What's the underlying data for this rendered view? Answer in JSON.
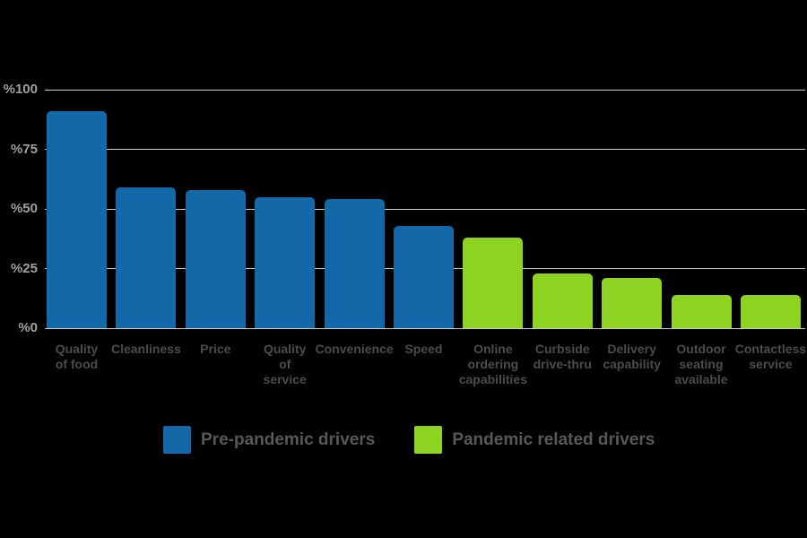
{
  "background_color": "#000000",
  "chart_data": {
    "type": "bar",
    "title": "",
    "unit": "percent",
    "ylim": [
      0,
      100
    ],
    "grid": "horizontal",
    "legend_position": "bottom",
    "yticks": [
      {
        "value": 100,
        "label": "%100"
      },
      {
        "value": 75,
        "label": "%75"
      },
      {
        "value": 50,
        "label": "%50"
      },
      {
        "value": 25,
        "label": "%25"
      },
      {
        "value": 0,
        "label": "%0"
      }
    ],
    "categories": [
      "Quality of food",
      "Cleanliness",
      "Price",
      "Quality of service",
      "Convenience",
      "Speed",
      "Online ordering capabilities",
      "Curbside drive-thru",
      "Delivery capability",
      "Outdoor seating available",
      "Contactless service"
    ],
    "bars": [
      {
        "label": "Quality of food",
        "lines": [
          "Quality",
          "of food"
        ],
        "value": 91,
        "group": "pre_pandemic"
      },
      {
        "label": "Cleanliness",
        "lines": [
          "Cleanliness"
        ],
        "value": 59,
        "group": "pre_pandemic"
      },
      {
        "label": "Price",
        "lines": [
          "Price"
        ],
        "value": 58,
        "group": "pre_pandemic"
      },
      {
        "label": "Quality of service",
        "lines": [
          "Quality",
          "of",
          "service"
        ],
        "value": 55,
        "group": "pre_pandemic"
      },
      {
        "label": "Convenience",
        "lines": [
          "Convenience"
        ],
        "value": 54,
        "group": "pre_pandemic"
      },
      {
        "label": "Speed",
        "lines": [
          "Speed"
        ],
        "value": 43,
        "group": "pre_pandemic"
      },
      {
        "label": "Online ordering capabilities",
        "lines": [
          "Online",
          "ordering",
          "capabilities"
        ],
        "value": 38,
        "group": "pandemic"
      },
      {
        "label": "Curbside drive-thru",
        "lines": [
          "Curbside",
          "drive-thru"
        ],
        "value": 23,
        "group": "pandemic"
      },
      {
        "label": "Delivery capability",
        "lines": [
          "Delivery",
          "capability"
        ],
        "value": 21,
        "group": "pandemic"
      },
      {
        "label": "Outdoor seating available",
        "lines": [
          "Outdoor",
          "seating",
          "available"
        ],
        "value": 14,
        "group": "pandemic"
      },
      {
        "label": "Contactless service",
        "lines": [
          "Contactless",
          "service"
        ],
        "value": 14,
        "group": "pandemic"
      }
    ],
    "groups": {
      "pre_pandemic": {
        "label": "Pre-pandemic drivers",
        "color": "#1368a8"
      },
      "pandemic": {
        "label": "Pandemic related drivers",
        "color": "#8ed321"
      }
    },
    "legend": {
      "items": [
        {
          "label": "Pre-pandemic drivers",
          "color": "#1368a8"
        },
        {
          "label": "Pandemic related drivers",
          "color": "#8ed321"
        }
      ]
    },
    "colors": {
      "background": "#000000",
      "grid": "#cbcbcb",
      "tick_label": "#a0a0a0",
      "category_label": "#4c4c4c",
      "legend_label": "#58585a"
    }
  }
}
